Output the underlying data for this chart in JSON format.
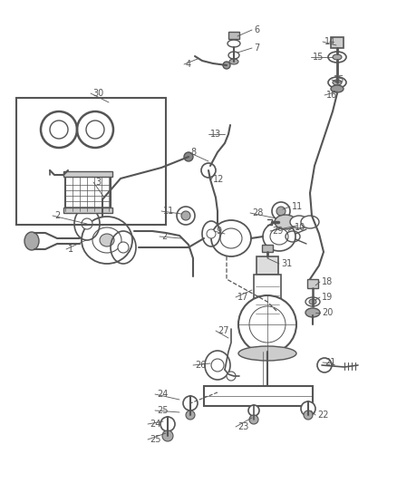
{
  "bg_color": "#ffffff",
  "line_color": "#555555",
  "label_color": "#555555",
  "font_size": 7.0,
  "figsize": [
    4.38,
    5.33
  ],
  "dpi": 100
}
